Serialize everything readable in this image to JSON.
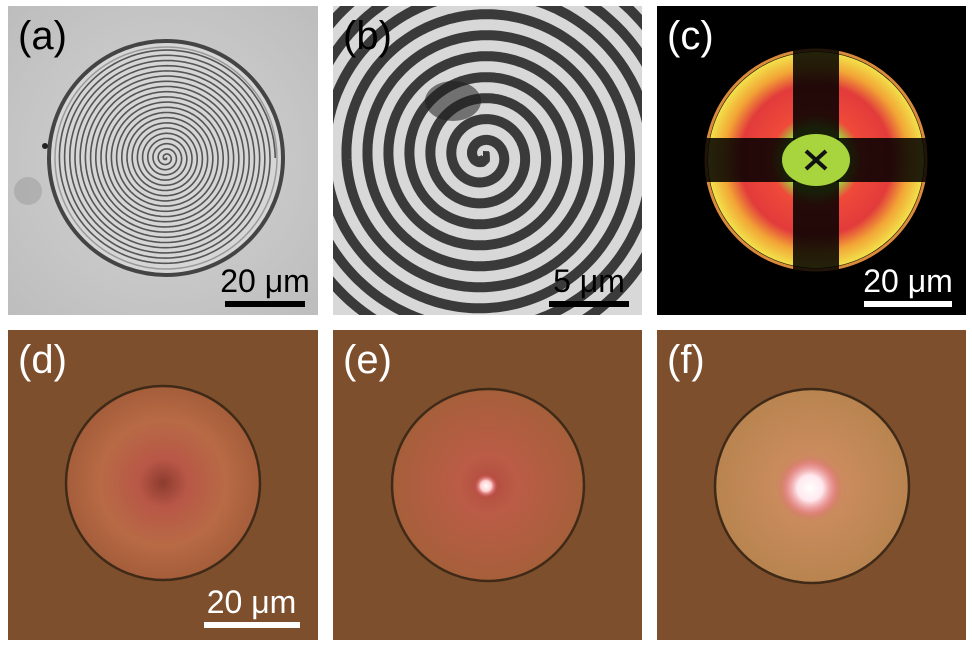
{
  "panels": [
    {
      "id": "a",
      "label": "(a)",
      "scale_bar": "20 μm",
      "label_color": "#000000",
      "bar_color": "#000000"
    },
    {
      "id": "b",
      "label": "(b)",
      "scale_bar": "5 μm",
      "label_color": "#000000",
      "bar_color": "#000000"
    },
    {
      "id": "c",
      "label": "(c)",
      "scale_bar": "20 μm",
      "label_color": "#ffffff",
      "bar_color": "#ffffff"
    },
    {
      "id": "d",
      "label": "(d)",
      "scale_bar": "20 μm",
      "label_color": "#ffffff",
      "bar_color": "#ffffff"
    },
    {
      "id": "e",
      "label": "(e)",
      "label_color": "#ffffff"
    },
    {
      "id": "f",
      "label": "(f)",
      "label_color": "#ffffff"
    }
  ],
  "colors": {
    "brightfield_bg": "#c9c9c9",
    "crossed_polarizer_bg": "#000000",
    "laser_bg": "#7d4f2c"
  }
}
